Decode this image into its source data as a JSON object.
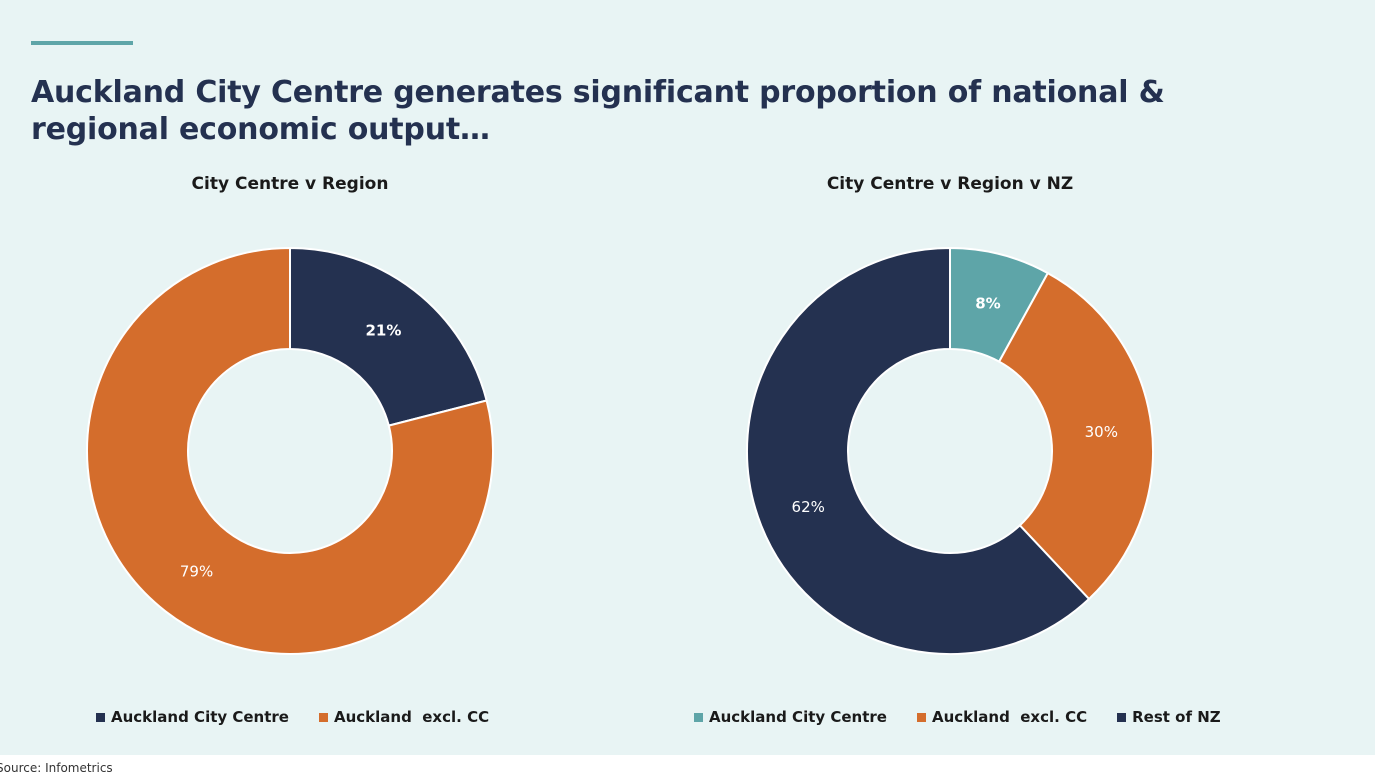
{
  "page": {
    "title": "Auckland City Centre generates significant proportion of national & regional economic output…",
    "source": "Source: Infometrics"
  },
  "colors": {
    "background": "#e8f4f4",
    "accent": "#5ea5a8",
    "title": "#243150"
  },
  "chart_data": [
    {
      "type": "pie",
      "donut": true,
      "title": "City Centre v Region",
      "legend_position": "bottom",
      "slices": [
        {
          "label": "Auckland City Centre",
          "value": 21,
          "display": "21%",
          "color": "#243150",
          "label_bold": true
        },
        {
          "label": "Auckland  excl. CC",
          "value": 79,
          "display": "79%",
          "color": "#d46d2c",
          "label_bold": false
        }
      ]
    },
    {
      "type": "pie",
      "donut": true,
      "title": "City Centre v Region v NZ",
      "legend_position": "bottom",
      "slices": [
        {
          "label": "Auckland City Centre",
          "value": 8,
          "display": "8%",
          "color": "#5ea5a8",
          "label_bold": true
        },
        {
          "label": "Auckland  excl. CC",
          "value": 30,
          "display": "30%",
          "color": "#d46d2c",
          "label_bold": false
        },
        {
          "label": "Rest of NZ",
          "value": 62,
          "display": "62%",
          "color": "#243150",
          "label_bold": false
        }
      ]
    }
  ]
}
